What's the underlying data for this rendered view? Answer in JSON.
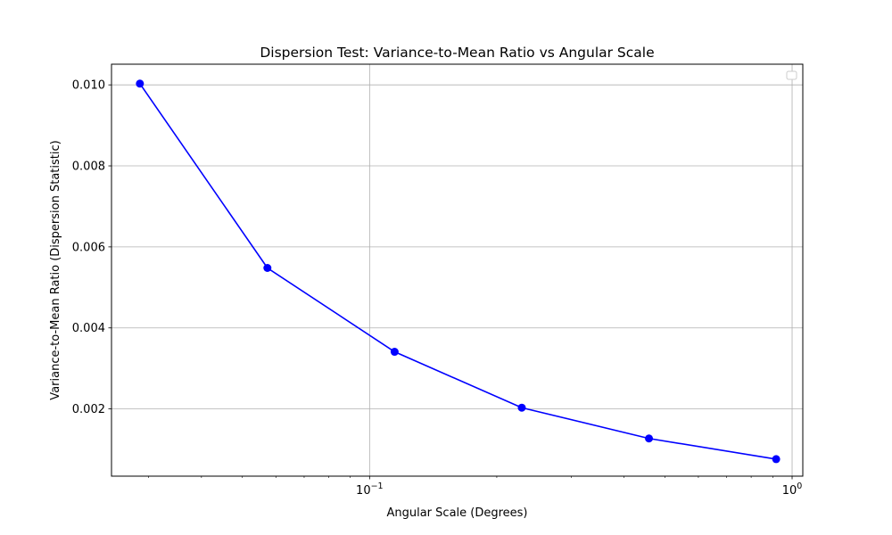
{
  "chart_data": {
    "type": "line",
    "title": "Dispersion Test: Variance-to-Mean Ratio vs Angular Scale",
    "xlabel": "Angular Scale (Degrees)",
    "ylabel": "Variance-to-Mean Ratio (Dispersion Statistic)",
    "x_scale": "log",
    "xlim": [
      0.0245,
      1.06
    ],
    "ylim": [
      0.00034,
      0.01051
    ],
    "x_ticks": [
      {
        "value": 0.1,
        "base": "10",
        "exp": "−1"
      },
      {
        "value": 1.0,
        "base": "10",
        "exp": "0"
      }
    ],
    "y_ticks": [
      {
        "value": 0.002,
        "label": "0.002"
      },
      {
        "value": 0.004,
        "label": "0.004"
      },
      {
        "value": 0.006,
        "label": "0.006"
      },
      {
        "value": 0.008,
        "label": "0.008"
      },
      {
        "value": 0.01,
        "label": "0.010"
      }
    ],
    "grid": true,
    "legend": {
      "placement": "upper right",
      "entries": []
    },
    "series": [
      {
        "color": "#0000ff",
        "marker": "circle",
        "x": [
          0.0286,
          0.0573,
          0.1146,
          0.2292,
          0.4584,
          0.9167
        ],
        "y": [
          0.01003,
          0.00548,
          0.00341,
          0.00203,
          0.00127,
          0.00076
        ]
      }
    ]
  }
}
